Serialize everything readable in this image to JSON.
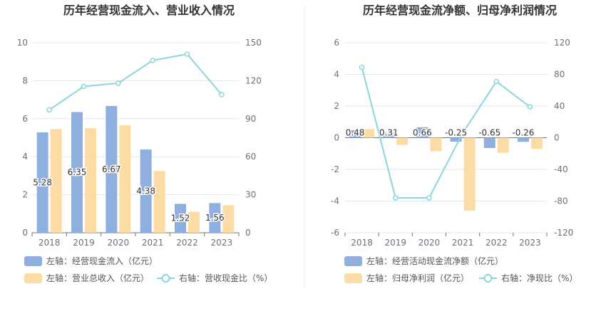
{
  "chart_data": [
    {
      "type": "bar",
      "title": "历年经营现金流入、营业收入情况",
      "categories": [
        "2018",
        "2019",
        "2020",
        "2021",
        "2022",
        "2023"
      ],
      "ylim_left": [
        0,
        10
      ],
      "left_ticks": [
        "0",
        "2",
        "4",
        "6",
        "8",
        "10"
      ],
      "ylim_right": [
        0,
        150
      ],
      "right_ticks": [
        "0",
        "30",
        "60",
        "90",
        "120",
        "150"
      ],
      "series": [
        {
          "name": "左轴：经营现金流入（亿元）",
          "axis": "left",
          "kind": "bar",
          "color": "#8fb0de",
          "values": [
            5.28,
            6.35,
            6.67,
            4.38,
            1.52,
            1.56
          ],
          "labels": [
            "5.28",
            "6.35",
            "6.67",
            "4.38",
            "1.52",
            "1.56"
          ]
        },
        {
          "name": "左轴：营业总收入（亿元）",
          "axis": "left",
          "kind": "bar",
          "color": "#fddba4",
          "values": [
            5.45,
            5.5,
            5.65,
            3.25,
            1.1,
            1.45
          ]
        },
        {
          "name": "右轴：营收现金比（%）",
          "axis": "right",
          "kind": "line",
          "color": "#8ad6da",
          "values": [
            97,
            115.5,
            118,
            136,
            141,
            109
          ]
        }
      ]
    },
    {
      "type": "bar",
      "title": "历年经营现金流净额、归母净利润情况",
      "categories": [
        "2018",
        "2019",
        "2020",
        "2021",
        "2022",
        "2023"
      ],
      "ylim_left": [
        -6,
        6
      ],
      "left_ticks": [
        "-6",
        "-4",
        "-2",
        "0",
        "2",
        "4",
        "6"
      ],
      "ylim_right": [
        -120,
        120
      ],
      "right_ticks": [
        "-120",
        "-80",
        "-40",
        "0",
        "40",
        "80",
        "120"
      ],
      "series": [
        {
          "name": "左轴：经营活动现金流净额（亿元）",
          "axis": "left",
          "kind": "bar",
          "color": "#8fb0de",
          "values": [
            0.48,
            0.31,
            0.66,
            -0.25,
            -0.65,
            -0.26
          ],
          "labels": [
            "0.48",
            "0.31",
            "0.66",
            "-0.25",
            "-0.65",
            "-0.26"
          ]
        },
        {
          "name": "左轴：归母净利润（亿元）",
          "axis": "left",
          "kind": "bar",
          "color": "#fddba4",
          "values": [
            0.55,
            -0.45,
            -0.85,
            -4.6,
            -0.95,
            -0.7
          ]
        },
        {
          "name": "右轴：净现比（%）",
          "axis": "right",
          "kind": "line",
          "color": "#8ad6da",
          "values": [
            89,
            -76,
            -76,
            6,
            71,
            39
          ]
        }
      ]
    }
  ]
}
